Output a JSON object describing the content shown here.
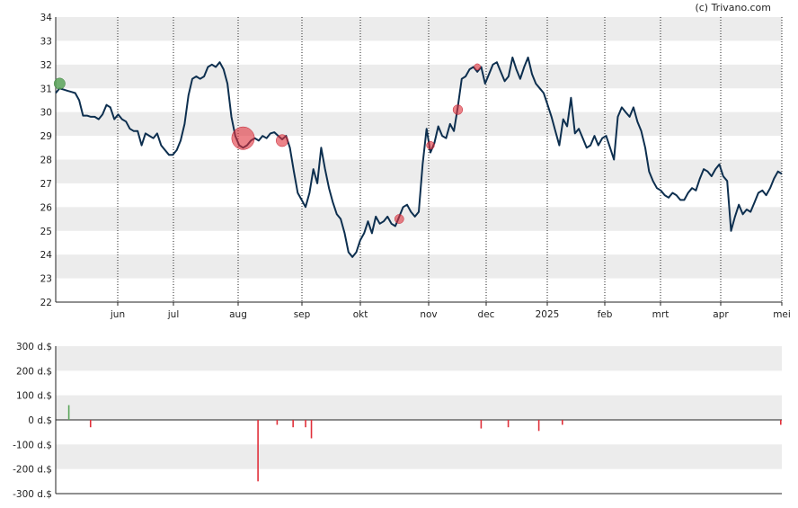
{
  "credit": "(c) Trivano.com",
  "chart_data": [
    {
      "type": "line",
      "x_tick_labels": [
        "jun",
        "jul",
        "aug",
        "sep",
        "okt",
        "nov",
        "dec",
        "2025",
        "feb",
        "mrt",
        "apr",
        "mei"
      ],
      "ylim": [
        22,
        34
      ],
      "y_ticks": [
        22,
        23,
        24,
        25,
        26,
        27,
        28,
        29,
        30,
        31,
        32,
        33,
        34
      ],
      "grid": "alternating horizontal bands, dotted vertical month lines",
      "colors": {
        "line": "#0d2f4f",
        "buy": "#5aa55a",
        "sell": "#e0303a",
        "band": "#ececec"
      },
      "series": [
        {
          "values": [
            30.8,
            31.0,
            30.95,
            30.9,
            30.85,
            30.8,
            30.5,
            29.85,
            29.85,
            29.8,
            29.8,
            29.7,
            29.9,
            30.3,
            30.2,
            29.7,
            29.9,
            29.7,
            29.6,
            29.3,
            29.2,
            29.2,
            28.6,
            29.1,
            29.0,
            28.9,
            29.1,
            28.6,
            28.4,
            28.2,
            28.2,
            28.4,
            28.8,
            29.5,
            30.7,
            31.4,
            31.5,
            31.4,
            31.5,
            31.9,
            32.0,
            31.9,
            32.1,
            31.8,
            31.2,
            29.8,
            29.0,
            28.6,
            28.5,
            28.6,
            28.8,
            28.9,
            28.8,
            29.0,
            28.9,
            29.1,
            29.15,
            29.0,
            28.85,
            29.0,
            28.5,
            27.5,
            26.6,
            26.3,
            26.0,
            26.6,
            27.6,
            27.0,
            28.5,
            27.6,
            26.8,
            26.2,
            25.7,
            25.5,
            24.9,
            24.1,
            23.9,
            24.1,
            24.6,
            24.9,
            25.4,
            24.9,
            25.6,
            25.3,
            25.4,
            25.6,
            25.3,
            25.2,
            25.6,
            26.0,
            26.1,
            25.8,
            25.6,
            25.8,
            27.8,
            29.3,
            28.3,
            28.7,
            29.4,
            29.0,
            28.9,
            29.5,
            29.2,
            30.2,
            31.4,
            31.5,
            31.8,
            31.9,
            31.7,
            31.9,
            31.2,
            31.6,
            32.0,
            32.1,
            31.7,
            31.3,
            31.5,
            32.3,
            31.8,
            31.4,
            31.9,
            32.3,
            31.6,
            31.2,
            31.0,
            30.8,
            30.3,
            29.8,
            29.2,
            28.6,
            29.7,
            29.4,
            30.6,
            29.1,
            29.3,
            28.9,
            28.5,
            28.6,
            29.0,
            28.6,
            28.9,
            29.0,
            28.5,
            28.0,
            29.8,
            30.2,
            30.0,
            29.8,
            30.2,
            29.6,
            29.2,
            28.5,
            27.5,
            27.1,
            26.8,
            26.7,
            26.5,
            26.4,
            26.6,
            26.5,
            26.3,
            26.3,
            26.6,
            26.8,
            26.7,
            27.2,
            27.6,
            27.5,
            27.3,
            27.6,
            27.8,
            27.3,
            27.1,
            25.0,
            25.6,
            26.1,
            25.7,
            25.9,
            25.8,
            26.2,
            26.6,
            26.7,
            26.5,
            26.8,
            27.2,
            27.5,
            27.4
          ]
        }
      ],
      "trade_markers": [
        {
          "type": "buy",
          "index": 1,
          "y": 31.2,
          "amount": 60
        },
        {
          "type": "sell",
          "index": 48,
          "y": 28.9,
          "amount": -250
        },
        {
          "type": "sell",
          "index": 58,
          "y": 28.8,
          "amount": -70
        },
        {
          "type": "sell",
          "index": 88,
          "y": 25.5,
          "amount": -40
        },
        {
          "type": "sell",
          "index": 96,
          "y": 28.6,
          "amount": -30
        },
        {
          "type": "sell",
          "index": 103,
          "y": 30.1,
          "amount": -45
        },
        {
          "type": "sell",
          "index": 108,
          "y": 31.9,
          "amount": -20
        }
      ]
    },
    {
      "type": "bar",
      "ylim": [
        -300,
        300
      ],
      "y_tick_labels": [
        "300 d.$",
        "200 d.$",
        "100 d.$",
        "0 d.$",
        "-100 d.$",
        "-200 d.$",
        "-300 d.$"
      ],
      "y_tick_values": [
        300,
        200,
        100,
        0,
        -100,
        -200,
        -300
      ],
      "bars": [
        {
          "month_pos": 0.2,
          "value": 60
        },
        {
          "month_pos": 0.55,
          "value": -30
        },
        {
          "month_pos": 3.3,
          "value": -250
        },
        {
          "month_pos": 3.6,
          "value": -20
        },
        {
          "month_pos": 3.85,
          "value": -30
        },
        {
          "month_pos": 4.05,
          "value": -30
        },
        {
          "month_pos": 4.15,
          "value": -75
        },
        {
          "month_pos": 6.9,
          "value": -35
        },
        {
          "month_pos": 7.35,
          "value": -30
        },
        {
          "month_pos": 7.85,
          "value": -45
        },
        {
          "month_pos": 8.25,
          "value": -20
        },
        {
          "month_pos": 12.2,
          "value": -20
        }
      ]
    }
  ]
}
